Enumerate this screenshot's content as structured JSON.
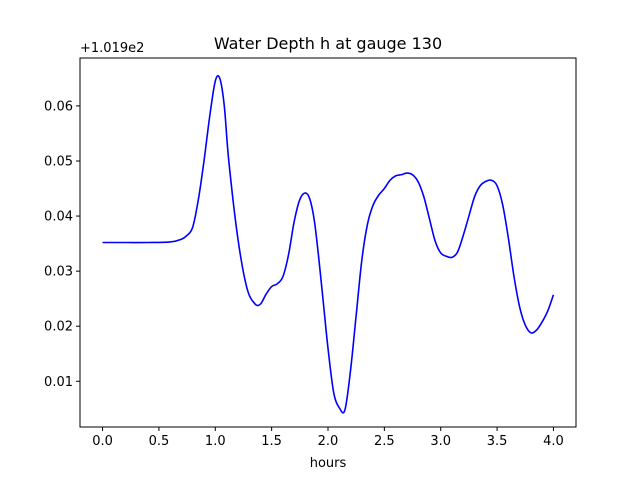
{
  "chart_data": {
    "type": "line",
    "title": "Water Depth h at gauge 130",
    "xlabel": "hours",
    "ylabel": "",
    "offset_text": "+1.019e2",
    "xlim": [
      -0.2,
      4.2
    ],
    "ylim": [
      0.0017,
      0.0687
    ],
    "grid": false,
    "x_ticks": [
      0.0,
      0.5,
      1.0,
      1.5,
      2.0,
      2.5,
      3.0,
      3.5,
      4.0
    ],
    "x_tick_labels": [
      "0.0",
      "0.5",
      "1.0",
      "1.5",
      "2.0",
      "2.5",
      "3.0",
      "3.5",
      "4.0"
    ],
    "y_ticks": [
      0.01,
      0.02,
      0.03,
      0.04,
      0.05,
      0.06
    ],
    "y_tick_labels": [
      "0.01",
      "0.02",
      "0.03",
      "0.04",
      "0.05",
      "0.06"
    ],
    "series": [
      {
        "color": "#0000ff",
        "x": [
          0.0,
          0.2,
          0.4,
          0.6,
          0.7,
          0.75,
          0.8,
          0.85,
          0.9,
          0.95,
          1.0,
          1.04,
          1.08,
          1.12,
          1.2,
          1.28,
          1.35,
          1.4,
          1.45,
          1.5,
          1.55,
          1.6,
          1.65,
          1.7,
          1.75,
          1.8,
          1.84,
          1.88,
          1.92,
          1.96,
          2.0,
          2.05,
          2.1,
          2.15,
          2.2,
          2.25,
          2.3,
          2.35,
          2.4,
          2.45,
          2.5,
          2.55,
          2.6,
          2.65,
          2.7,
          2.75,
          2.8,
          2.85,
          2.9,
          2.95,
          3.0,
          3.05,
          3.1,
          3.15,
          3.2,
          3.25,
          3.3,
          3.35,
          3.4,
          3.45,
          3.5,
          3.55,
          3.6,
          3.65,
          3.7,
          3.75,
          3.8,
          3.85,
          3.9,
          3.95,
          4.0
        ],
        "y": [
          0.0352,
          0.0352,
          0.0352,
          0.0353,
          0.0358,
          0.0365,
          0.038,
          0.043,
          0.05,
          0.058,
          0.0645,
          0.065,
          0.06,
          0.05,
          0.036,
          0.027,
          0.0241,
          0.024,
          0.0258,
          0.0272,
          0.0277,
          0.029,
          0.033,
          0.039,
          0.043,
          0.0442,
          0.043,
          0.039,
          0.032,
          0.024,
          0.016,
          0.008,
          0.0052,
          0.0048,
          0.012,
          0.022,
          0.032,
          0.0385,
          0.042,
          0.0438,
          0.045,
          0.0465,
          0.0473,
          0.0475,
          0.0478,
          0.0475,
          0.0462,
          0.0435,
          0.0395,
          0.0355,
          0.0333,
          0.0327,
          0.0325,
          0.0335,
          0.0365,
          0.04,
          0.0435,
          0.0455,
          0.0463,
          0.0465,
          0.0455,
          0.042,
          0.036,
          0.029,
          0.0235,
          0.0202,
          0.0188,
          0.0193,
          0.0208,
          0.0228,
          0.0257
        ]
      }
    ]
  }
}
